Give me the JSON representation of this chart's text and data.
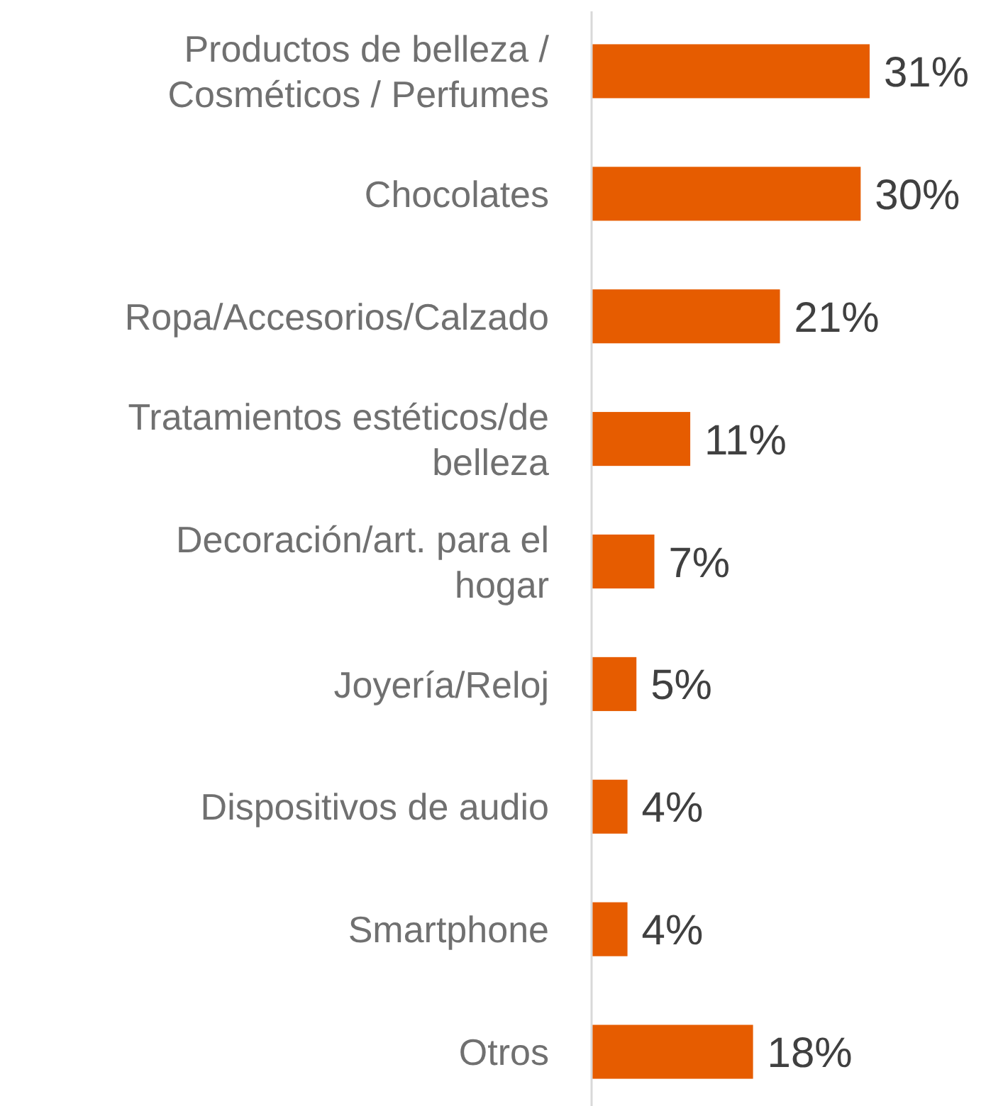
{
  "chart_data": {
    "type": "bar",
    "orientation": "horizontal",
    "categories": [
      "Productos de belleza / Cosméticos / Perfumes",
      "Chocolates",
      "Ropa/Accesorios/Calzado",
      "Tratamientos estéticos/de belleza",
      "Decoración/art. para el hogar",
      "Joyería/Reloj",
      "Dispositivos de audio",
      "Smartphone",
      "Otros"
    ],
    "values": [
      31,
      30,
      21,
      11,
      7,
      5,
      4,
      4,
      18
    ],
    "color": "#e65c00",
    "value_labels": [
      "31%",
      "30%",
      "21%",
      "11%",
      "7%",
      "5%",
      "4%",
      "4%",
      "18%"
    ]
  }
}
